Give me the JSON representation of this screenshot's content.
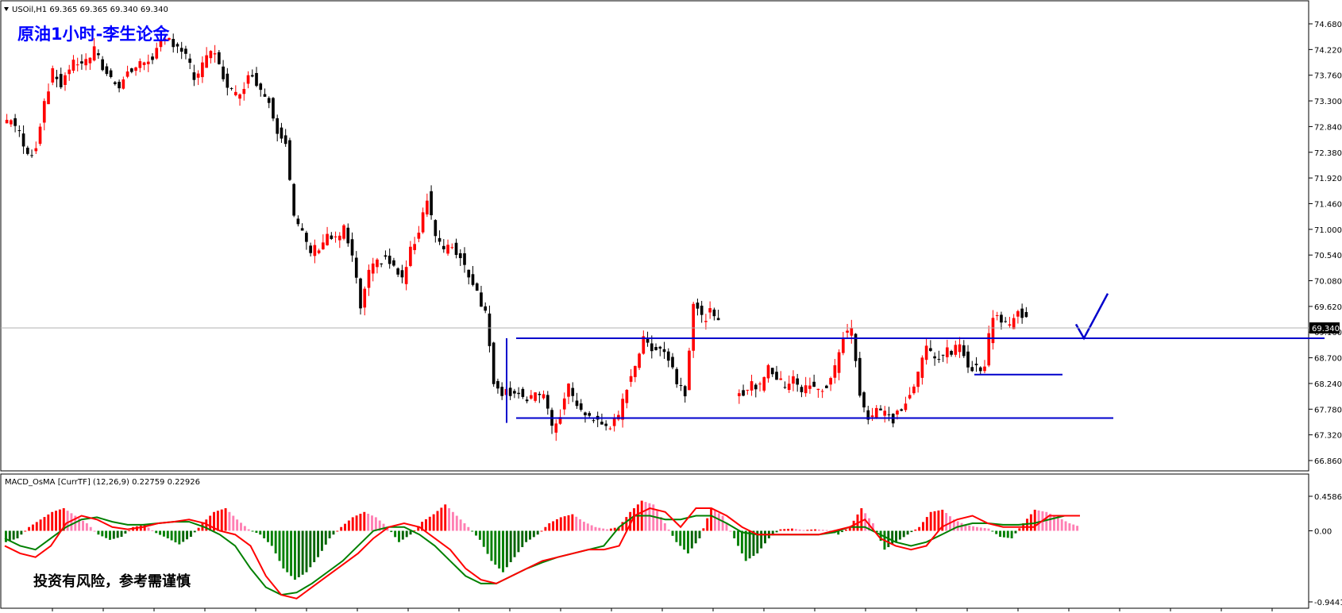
{
  "header": {
    "symbol_info": "USOil,H1  69.365 69.365 69.340 69.340",
    "caption": "原油1小时-李生论金",
    "current_price": "69.340"
  },
  "indicator": {
    "label": "MACD_OsMA [CurrTF] (12,26,9) 0.22759 0.22926",
    "warning": "投资有风险，参考需谨慎"
  },
  "colors": {
    "bull": "#ff0000",
    "bear": "#000000",
    "box": "#0000cc",
    "macd_up_strong": "#ff0000",
    "macd_up_weak": "#ff7fb3",
    "macd_down_strong": "#008000",
    "macd_down_weak": "#006400",
    "signal_fast": "#ff0000",
    "signal_slow": "#008000",
    "caption": "#0000ff"
  },
  "chart_data": [
    {
      "type": "candlestick",
      "ylim": [
        66.86,
        74.93
      ],
      "ytick_labels": [
        "74.680",
        "74.220",
        "73.760",
        "73.300",
        "72.840",
        "72.380",
        "71.920",
        "71.460",
        "71.000",
        "70.540",
        "70.080",
        "69.620",
        "69.160",
        "68.700",
        "68.240",
        "67.780",
        "67.320",
        "66.860"
      ],
      "close_path": [
        72.9,
        73.0,
        72.7,
        72.3,
        72.5,
        73.3,
        73.8,
        73.6,
        73.9,
        74.0,
        74.0,
        74.2,
        73.9,
        73.7,
        73.6,
        73.8,
        73.9,
        74.0,
        74.1,
        74.3,
        74.4,
        74.3,
        74.1,
        73.7,
        73.9,
        74.2,
        74.0,
        73.5,
        73.4,
        73.6,
        73.8,
        73.5,
        73.3,
        72.8,
        72.6,
        71.2,
        70.9,
        70.6,
        70.7,
        70.9,
        70.8,
        71.0,
        70.5,
        69.6,
        70.2,
        70.4,
        70.5,
        70.3,
        70.1,
        70.6,
        71.0,
        71.6,
        70.9,
        70.6,
        70.7,
        70.5,
        70.2,
        69.9,
        69.5,
        68.3,
        68.1,
        68.1,
        68.1,
        67.9,
        68.0,
        68.1,
        67.4,
        67.7,
        68.2,
        67.8,
        67.7,
        67.6,
        67.5,
        67.5,
        67.6,
        68.2,
        68.6,
        69.0,
        68.9,
        68.9,
        68.7,
        68.3,
        68.1,
        69.7,
        69.4,
        69.5,
        69.3,
        null,
        68.1,
        68.1,
        68.2,
        68.2,
        68.6,
        68.3,
        68.2,
        68.4,
        68.1,
        68.2,
        68.1,
        68.2,
        68.5,
        69.1,
        69.2,
        68.1,
        67.6,
        67.8,
        67.7,
        67.6,
        67.8,
        68.0,
        68.4,
        68.9,
        68.7,
        68.8,
        68.8,
        68.9,
        68.6,
        68.5,
        68.6,
        69.5,
        69.4,
        69.3,
        69.5,
        69.4
      ],
      "support_box": {
        "top": 69.05,
        "bottom": 67.62
      },
      "minor_support": 68.4,
      "projection": "dip to ~69.05 then rise toward ~69.85"
    },
    {
      "type": "bar",
      "name": "MACD_OsMA",
      "ylim": [
        -0.94419,
        0.45864
      ],
      "ytick_labels": [
        "0.45864",
        "0.00",
        "-0.94419"
      ],
      "values_path": [
        -0.15,
        -0.1,
        0.05,
        0.15,
        0.25,
        0.3,
        0.2,
        0.1,
        -0.05,
        -0.12,
        -0.08,
        0.05,
        0.08,
        -0.03,
        -0.1,
        -0.18,
        -0.08,
        0.1,
        0.25,
        0.3,
        0.15,
        0.02,
        -0.05,
        -0.2,
        -0.5,
        -0.65,
        -0.55,
        -0.35,
        -0.1,
        0.05,
        0.18,
        0.25,
        0.18,
        0.05,
        -0.15,
        -0.05,
        0.12,
        0.22,
        0.35,
        0.2,
        0.05,
        -0.12,
        -0.4,
        -0.55,
        -0.35,
        -0.15,
        -0.05,
        0.1,
        0.18,
        0.22,
        0.12,
        0.05,
        0.02,
        0.05,
        0.25,
        0.4,
        0.35,
        0.1,
        -0.15,
        -0.3,
        -0.1,
        0.3,
        0.2,
        -0.1,
        -0.4,
        -0.3,
        -0.1,
        0.02,
        0.03,
        0.01,
        0.02,
        0.01,
        -0.05,
        0.05,
        0.3,
        0.1,
        -0.25,
        -0.15,
        -0.05,
        0.05,
        0.25,
        0.28,
        0.15,
        0.08,
        0.05,
        0.03,
        -0.08,
        -0.1,
        0.1,
        0.28,
        0.25,
        0.18,
        0.1,
        0.05
      ],
      "fast_path": [
        -0.2,
        -0.3,
        -0.35,
        -0.2,
        0.1,
        0.2,
        0.15,
        0.05,
        0.02,
        0.05,
        0.1,
        0.12,
        0.15,
        0.1,
        0.0,
        -0.05,
        -0.2,
        -0.6,
        -0.85,
        -0.9,
        -0.75,
        -0.6,
        -0.45,
        -0.3,
        -0.1,
        0.05,
        0.1,
        0.05,
        -0.1,
        -0.25,
        -0.5,
        -0.65,
        -0.7,
        -0.6,
        -0.5,
        -0.4,
        -0.35,
        -0.3,
        -0.25,
        -0.25,
        -0.2,
        0.2,
        0.3,
        0.25,
        0.05,
        0.3,
        0.3,
        0.2,
        0.05,
        -0.05,
        -0.05,
        -0.05,
        -0.05,
        -0.05,
        0.0,
        0.05,
        0.15,
        -0.1,
        -0.2,
        -0.25,
        -0.2,
        0.05,
        0.15,
        0.2,
        0.1,
        0.05,
        0.05,
        0.05,
        0.2,
        0.2,
        0.2
      ],
      "slow_path": [
        -0.1,
        -0.2,
        -0.25,
        -0.1,
        0.05,
        0.15,
        0.18,
        0.12,
        0.08,
        0.08,
        0.1,
        0.12,
        0.12,
        0.05,
        -0.05,
        -0.2,
        -0.5,
        -0.75,
        -0.85,
        -0.82,
        -0.7,
        -0.55,
        -0.4,
        -0.2,
        0.0,
        0.05,
        0.05,
        -0.05,
        -0.2,
        -0.4,
        -0.6,
        -0.7,
        -0.7,
        -0.6,
        -0.5,
        -0.42,
        -0.35,
        -0.3,
        -0.25,
        -0.2,
        0.05,
        0.2,
        0.2,
        0.15,
        0.15,
        0.2,
        0.2,
        0.1,
        -0.02,
        -0.05,
        -0.05,
        -0.05,
        -0.05,
        -0.05,
        -0.02,
        0.05,
        0.05,
        -0.05,
        -0.15,
        -0.2,
        -0.15,
        -0.05,
        0.05,
        0.1,
        0.1,
        0.08,
        0.08,
        0.1,
        0.15,
        0.2,
        0.2
      ]
    }
  ]
}
